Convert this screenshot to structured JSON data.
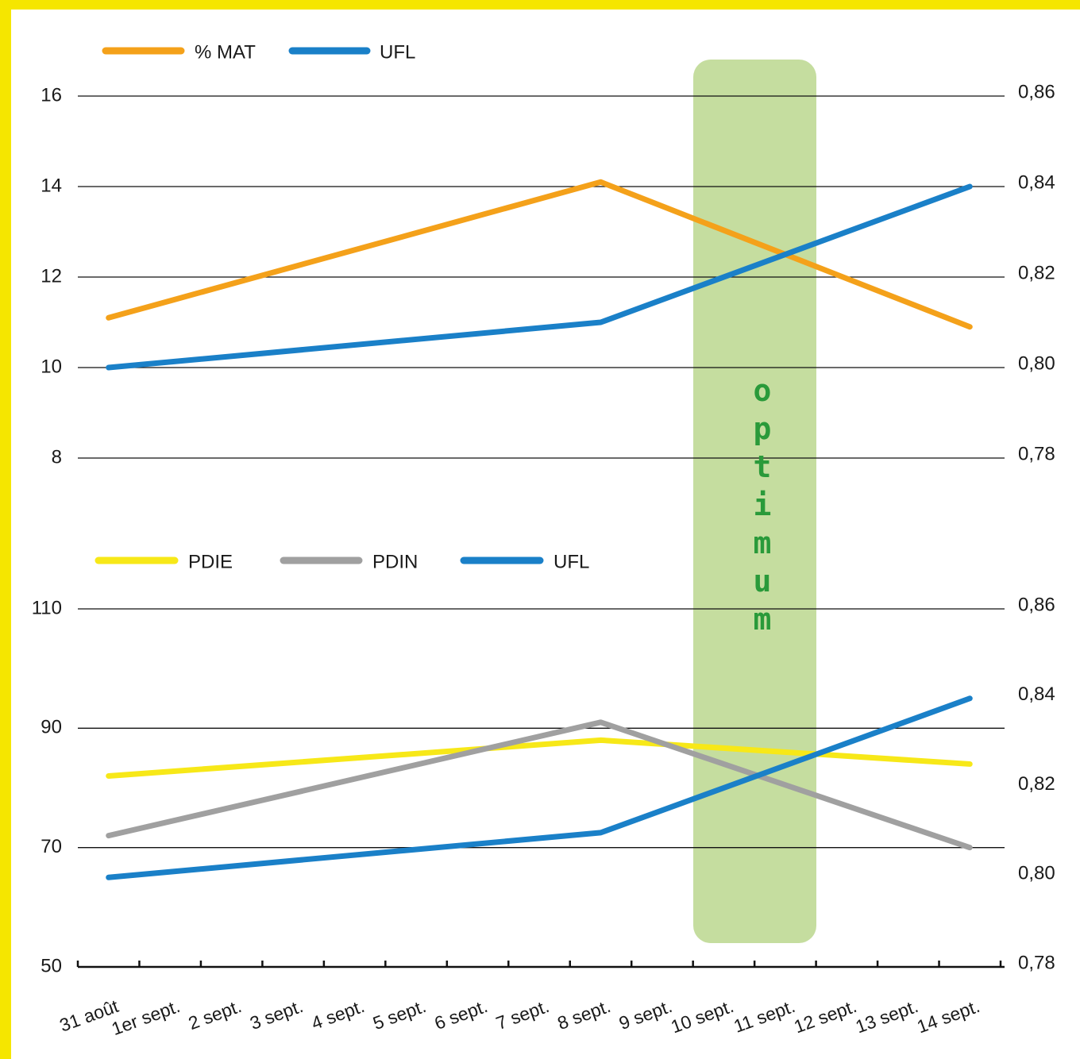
{
  "chart_data": [
    {
      "type": "line",
      "ylim": [
        8,
        16
      ],
      "yticks": [
        8,
        10,
        12,
        14,
        16
      ],
      "y2lim": [
        0.78,
        0.86
      ],
      "y2ticks": [
        {
          "value": 0.78,
          "label": "0,78"
        },
        {
          "value": 0.8,
          "label": "0,80"
        },
        {
          "value": 0.82,
          "label": "0,82"
        },
        {
          "value": 0.84,
          "label": "0,84"
        },
        {
          "value": 0.86,
          "label": "0,86"
        }
      ],
      "grid": true,
      "series": [
        {
          "name": "% MAT",
          "color": "#f4a11a",
          "x": [
            "31 août",
            "8 sept.",
            "14 sept."
          ],
          "values": [
            11.1,
            14.1,
            10.9
          ]
        },
        {
          "name": "UFL",
          "color": "#1a80c8",
          "axis": "y2",
          "x": [
            "31 août",
            "8 sept.",
            "14 sept."
          ],
          "values": [
            0.8,
            0.81,
            0.84
          ]
        }
      ]
    },
    {
      "type": "line",
      "categories": [
        "31 août",
        "1er sept.",
        "2 sept.",
        "3 sept.",
        "4 sept.",
        "5 sept.",
        "6 sept.",
        "7 sept.",
        "8 sept.",
        "9 sept.",
        "10 sept.",
        "11 sept.",
        "12 sept.",
        "13 sept.",
        "14 sept."
      ],
      "ylim": [
        50,
        110
      ],
      "yticks": [
        50,
        70,
        90,
        110
      ],
      "y2lim": [
        0.78,
        0.86
      ],
      "y2ticks": [
        {
          "value": 0.78,
          "label": "0,78"
        },
        {
          "value": 0.8,
          "label": "0,80"
        },
        {
          "value": 0.82,
          "label": "0,82"
        },
        {
          "value": 0.84,
          "label": "0,84"
        },
        {
          "value": 0.86,
          "label": "0,86"
        }
      ],
      "grid": true,
      "series": [
        {
          "name": "PDIE",
          "color": "#f7e818",
          "x": [
            "31 août",
            "8 sept.",
            "14 sept."
          ],
          "values": [
            82,
            88,
            84
          ]
        },
        {
          "name": "PDIN",
          "color": "#a0a0a0",
          "x": [
            "31 août",
            "8 sept.",
            "14 sept."
          ],
          "values": [
            72,
            91,
            70
          ]
        },
        {
          "name": "UFL",
          "color": "#1a80c8",
          "axis": "y2",
          "x": [
            "31 août",
            "8 sept.",
            "14 sept."
          ],
          "values": [
            0.8,
            0.81,
            0.84
          ]
        }
      ]
    }
  ],
  "annotation": "optimum"
}
